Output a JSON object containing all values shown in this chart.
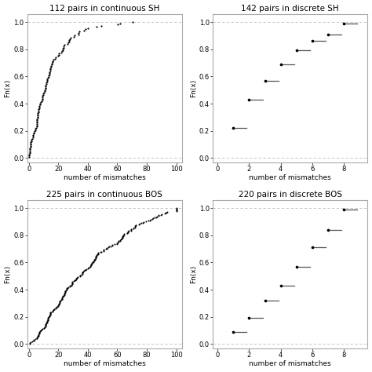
{
  "titles": [
    "112 pairs in continuous SH",
    "142 pairs in discrete SH",
    "225 pairs in continuous BOS",
    "220 pairs in discrete BOS"
  ],
  "xlabel": "number of mismatches",
  "ylabel": "Fn(x)",
  "discrete_sh": {
    "steps": [
      1,
      2,
      3,
      4,
      5,
      6,
      7,
      8
    ],
    "values": [
      0.22,
      0.43,
      0.57,
      0.69,
      0.79,
      0.86,
      0.91,
      0.99
    ],
    "line_end": [
      2,
      3,
      4,
      5,
      6,
      7,
      8,
      9
    ]
  },
  "discrete_bos": {
    "steps": [
      1,
      2,
      3,
      4,
      5,
      6,
      7,
      8
    ],
    "values": [
      0.09,
      0.19,
      0.32,
      0.43,
      0.57,
      0.71,
      0.84,
      0.99
    ],
    "line_end": [
      2,
      3,
      4,
      5,
      6,
      7,
      8,
      9
    ]
  },
  "background_color": "#ffffff",
  "dot_color": "#000000",
  "line_color": "#555555",
  "dashed_color": "#bbbbbb",
  "title_fontsize": 7.5,
  "axis_fontsize": 6.5,
  "tick_fontsize": 6
}
